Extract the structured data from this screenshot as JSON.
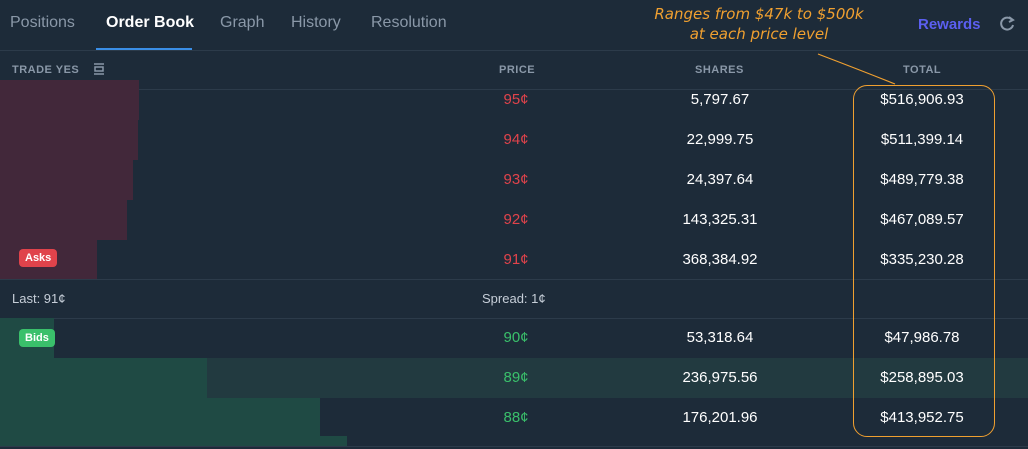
{
  "tabs": [
    {
      "label": "Positions"
    },
    {
      "label": "Order Book"
    },
    {
      "label": "Graph"
    },
    {
      "label": "History"
    },
    {
      "label": "Resolution"
    }
  ],
  "rewards_label": "Rewards",
  "header": {
    "trade": "TRADE YES",
    "price": "PRICE",
    "shares": "SHARES",
    "total": "TOTAL"
  },
  "asks_label": "Asks",
  "bids_label": "Bids",
  "asks": [
    {
      "price": "95¢",
      "shares": "5,797.67",
      "total": "$516,906.93"
    },
    {
      "price": "94¢",
      "shares": "22,999.75",
      "total": "$511,399.14"
    },
    {
      "price": "93¢",
      "shares": "24,397.64",
      "total": "$489,779.38"
    },
    {
      "price": "92¢",
      "shares": "143,325.31",
      "total": "$467,089.57"
    },
    {
      "price": "91¢",
      "shares": "368,384.92",
      "total": "$335,230.28"
    }
  ],
  "mid": {
    "last": "Last: 91¢",
    "spread": "Spread: 1¢"
  },
  "bids": [
    {
      "price": "90¢",
      "shares": "53,318.64",
      "total": "$47,986.78"
    },
    {
      "price": "89¢",
      "shares": "236,975.56",
      "total": "$258,895.03"
    },
    {
      "price": "88¢",
      "shares": "176,201.96",
      "total": "$413,952.75"
    }
  ],
  "annotation": {
    "line1": "Ranges from $47k to $500k",
    "line2": "at each price level"
  },
  "colors": {
    "ask": "#e0434b",
    "bid": "#3ac06b",
    "accent": "#3a8ee6",
    "annotation": "#f0a030"
  }
}
